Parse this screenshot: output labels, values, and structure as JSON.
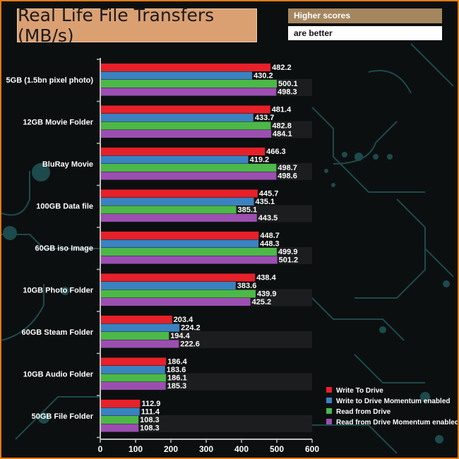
{
  "header": {
    "title": "Real Life File Transfers (MB/s)",
    "note_line1": "Higher scores",
    "note_line2": "are better"
  },
  "colors": {
    "write": "#e8202a",
    "write_momentum": "#3a82c0",
    "read": "#4cb848",
    "read_momentum": "#9b4fb0",
    "frame": "#e07a14"
  },
  "chart_data": {
    "type": "bar",
    "orientation": "horizontal",
    "title": "Real Life File Transfers (MB/s)",
    "xlabel": "",
    "ylabel": "",
    "xlim": [
      0,
      600
    ],
    "xticks": [
      0,
      100,
      200,
      300,
      400,
      500,
      600
    ],
    "legend_position": "bottom-right",
    "categories": [
      "5GB (1.5bn pixel photo)",
      "12GB Movie Folder",
      "BluRay Movie",
      "100GB Data file",
      "60GB iso Image",
      "10GB Photo Folder",
      "60GB Steam Folder",
      "10GB Audio Folder",
      "50GB File Folder"
    ],
    "series": [
      {
        "name": "Write To  Drive",
        "color": "#e8202a",
        "values": [
          482.2,
          481.4,
          466.3,
          445.7,
          448.7,
          438.4,
          203.4,
          186.4,
          112.9
        ]
      },
      {
        "name": "Write to Drive Momentum enabled",
        "color": "#3a82c0",
        "values": [
          430.2,
          433.7,
          419.2,
          435.1,
          448.3,
          383.6,
          224.2,
          183.6,
          111.4
        ]
      },
      {
        "name": "Read from Drive",
        "color": "#4cb848",
        "values": [
          500.1,
          482.8,
          498.7,
          385.1,
          499.9,
          439.9,
          194.4,
          186.1,
          108.3
        ]
      },
      {
        "name": "Read from Drive Momentum enabled",
        "color": "#9b4fb0",
        "values": [
          498.3,
          484.1,
          498.6,
          443.5,
          501.2,
          425.2,
          222.6,
          185.3,
          108.3
        ]
      }
    ]
  }
}
